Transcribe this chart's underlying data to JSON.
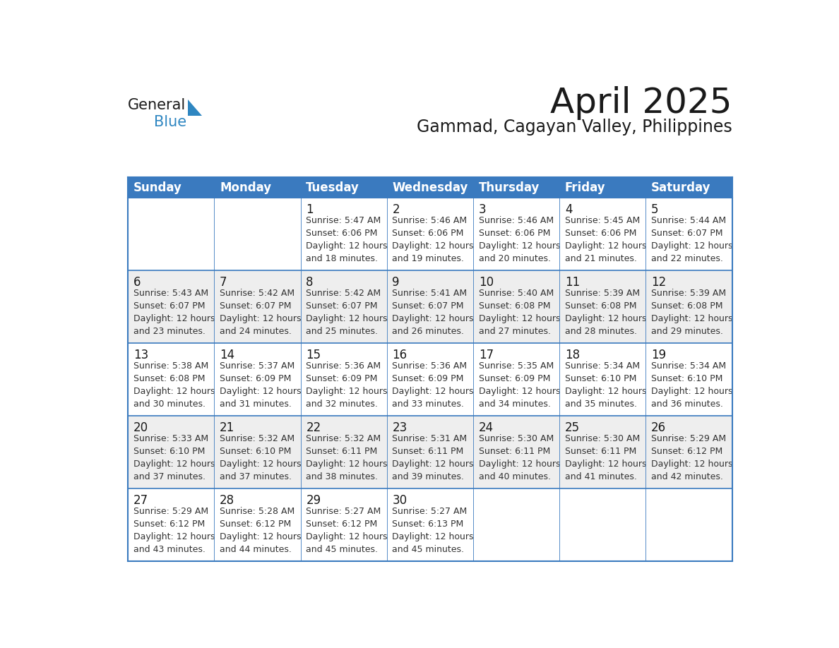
{
  "title": "April 2025",
  "subtitle": "Gammad, Cagayan Valley, Philippines",
  "header_bg_color": "#3a7abf",
  "header_text_color": "#ffffff",
  "cell_bg_white": "#ffffff",
  "cell_bg_gray": "#eeeeee",
  "cell_text_color": "#333333",
  "day_num_color": "#1a1a1a",
  "border_color": "#3a7abf",
  "days_of_week": [
    "Sunday",
    "Monday",
    "Tuesday",
    "Wednesday",
    "Thursday",
    "Friday",
    "Saturday"
  ],
  "row_bg_colors": [
    "#ffffff",
    "#eeeeee",
    "#ffffff",
    "#eeeeee",
    "#ffffff"
  ],
  "calendar_data": [
    [
      {
        "day": null,
        "text": ""
      },
      {
        "day": null,
        "text": ""
      },
      {
        "day": 1,
        "text": "Sunrise: 5:47 AM\nSunset: 6:06 PM\nDaylight: 12 hours\nand 18 minutes."
      },
      {
        "day": 2,
        "text": "Sunrise: 5:46 AM\nSunset: 6:06 PM\nDaylight: 12 hours\nand 19 minutes."
      },
      {
        "day": 3,
        "text": "Sunrise: 5:46 AM\nSunset: 6:06 PM\nDaylight: 12 hours\nand 20 minutes."
      },
      {
        "day": 4,
        "text": "Sunrise: 5:45 AM\nSunset: 6:06 PM\nDaylight: 12 hours\nand 21 minutes."
      },
      {
        "day": 5,
        "text": "Sunrise: 5:44 AM\nSunset: 6:07 PM\nDaylight: 12 hours\nand 22 minutes."
      }
    ],
    [
      {
        "day": 6,
        "text": "Sunrise: 5:43 AM\nSunset: 6:07 PM\nDaylight: 12 hours\nand 23 minutes."
      },
      {
        "day": 7,
        "text": "Sunrise: 5:42 AM\nSunset: 6:07 PM\nDaylight: 12 hours\nand 24 minutes."
      },
      {
        "day": 8,
        "text": "Sunrise: 5:42 AM\nSunset: 6:07 PM\nDaylight: 12 hours\nand 25 minutes."
      },
      {
        "day": 9,
        "text": "Sunrise: 5:41 AM\nSunset: 6:07 PM\nDaylight: 12 hours\nand 26 minutes."
      },
      {
        "day": 10,
        "text": "Sunrise: 5:40 AM\nSunset: 6:08 PM\nDaylight: 12 hours\nand 27 minutes."
      },
      {
        "day": 11,
        "text": "Sunrise: 5:39 AM\nSunset: 6:08 PM\nDaylight: 12 hours\nand 28 minutes."
      },
      {
        "day": 12,
        "text": "Sunrise: 5:39 AM\nSunset: 6:08 PM\nDaylight: 12 hours\nand 29 minutes."
      }
    ],
    [
      {
        "day": 13,
        "text": "Sunrise: 5:38 AM\nSunset: 6:08 PM\nDaylight: 12 hours\nand 30 minutes."
      },
      {
        "day": 14,
        "text": "Sunrise: 5:37 AM\nSunset: 6:09 PM\nDaylight: 12 hours\nand 31 minutes."
      },
      {
        "day": 15,
        "text": "Sunrise: 5:36 AM\nSunset: 6:09 PM\nDaylight: 12 hours\nand 32 minutes."
      },
      {
        "day": 16,
        "text": "Sunrise: 5:36 AM\nSunset: 6:09 PM\nDaylight: 12 hours\nand 33 minutes."
      },
      {
        "day": 17,
        "text": "Sunrise: 5:35 AM\nSunset: 6:09 PM\nDaylight: 12 hours\nand 34 minutes."
      },
      {
        "day": 18,
        "text": "Sunrise: 5:34 AM\nSunset: 6:10 PM\nDaylight: 12 hours\nand 35 minutes."
      },
      {
        "day": 19,
        "text": "Sunrise: 5:34 AM\nSunset: 6:10 PM\nDaylight: 12 hours\nand 36 minutes."
      }
    ],
    [
      {
        "day": 20,
        "text": "Sunrise: 5:33 AM\nSunset: 6:10 PM\nDaylight: 12 hours\nand 37 minutes."
      },
      {
        "day": 21,
        "text": "Sunrise: 5:32 AM\nSunset: 6:10 PM\nDaylight: 12 hours\nand 37 minutes."
      },
      {
        "day": 22,
        "text": "Sunrise: 5:32 AM\nSunset: 6:11 PM\nDaylight: 12 hours\nand 38 minutes."
      },
      {
        "day": 23,
        "text": "Sunrise: 5:31 AM\nSunset: 6:11 PM\nDaylight: 12 hours\nand 39 minutes."
      },
      {
        "day": 24,
        "text": "Sunrise: 5:30 AM\nSunset: 6:11 PM\nDaylight: 12 hours\nand 40 minutes."
      },
      {
        "day": 25,
        "text": "Sunrise: 5:30 AM\nSunset: 6:11 PM\nDaylight: 12 hours\nand 41 minutes."
      },
      {
        "day": 26,
        "text": "Sunrise: 5:29 AM\nSunset: 6:12 PM\nDaylight: 12 hours\nand 42 minutes."
      }
    ],
    [
      {
        "day": 27,
        "text": "Sunrise: 5:29 AM\nSunset: 6:12 PM\nDaylight: 12 hours\nand 43 minutes."
      },
      {
        "day": 28,
        "text": "Sunrise: 5:28 AM\nSunset: 6:12 PM\nDaylight: 12 hours\nand 44 minutes."
      },
      {
        "day": 29,
        "text": "Sunrise: 5:27 AM\nSunset: 6:12 PM\nDaylight: 12 hours\nand 45 minutes."
      },
      {
        "day": 30,
        "text": "Sunrise: 5:27 AM\nSunset: 6:13 PM\nDaylight: 12 hours\nand 45 minutes."
      },
      {
        "day": null,
        "text": ""
      },
      {
        "day": null,
        "text": ""
      },
      {
        "day": null,
        "text": ""
      }
    ]
  ],
  "logo_color_general": "#1a1a1a",
  "logo_color_blue": "#2e86c1",
  "logo_triangle_color": "#2e86c1",
  "title_fontsize": 36,
  "subtitle_fontsize": 17,
  "header_fontsize": 12,
  "day_num_fontsize": 12,
  "cell_text_fontsize": 9
}
